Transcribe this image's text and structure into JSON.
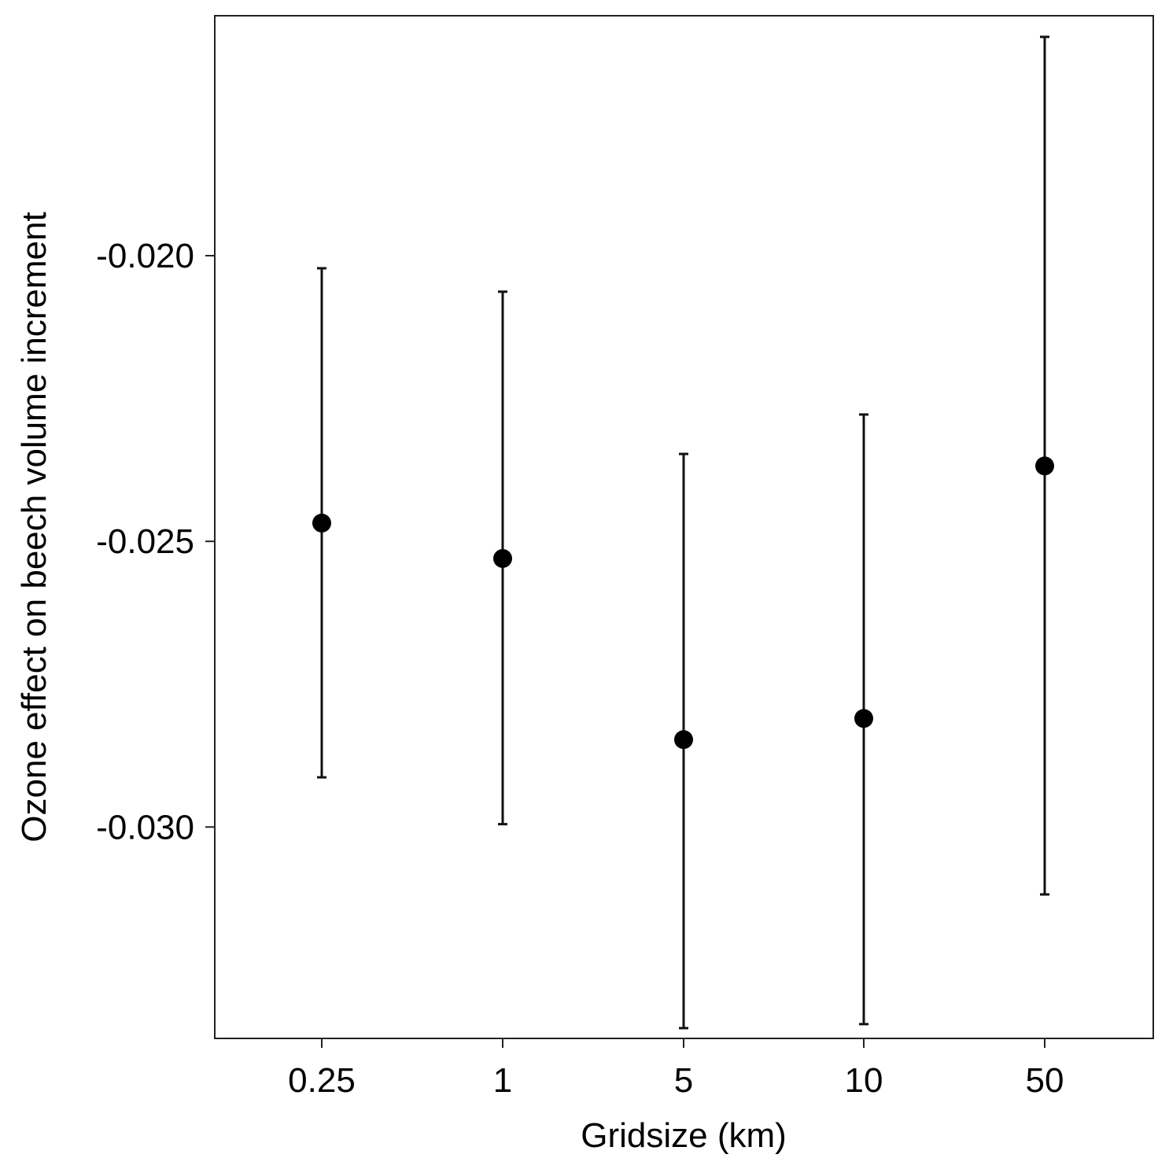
{
  "chart_data": {
    "type": "scatter",
    "title": "",
    "xlabel": "Gridsize (km)",
    "ylabel": "Ozone effect on beech volume increment",
    "categories": [
      "0.25",
      "1",
      "5",
      "10",
      "50"
    ],
    "yticks": [
      "-0.020",
      "-0.025",
      "-0.030"
    ],
    "ylim": [
      -0.0337,
      -0.0158
    ],
    "grid": false,
    "legend": "none",
    "series": [
      {
        "values": [
          -0.02468,
          -0.0253,
          -0.02847,
          -0.0281,
          -0.02368
        ],
        "lower": [
          -0.02913,
          -0.02995,
          -0.03352,
          -0.03345,
          -0.03118
        ],
        "upper": [
          -0.02022,
          -0.02063,
          -0.02347,
          -0.02278,
          -0.01617
        ]
      }
    ],
    "colors": {
      "points": "#000000",
      "axis": "#000000",
      "background": "#ffffff"
    }
  }
}
